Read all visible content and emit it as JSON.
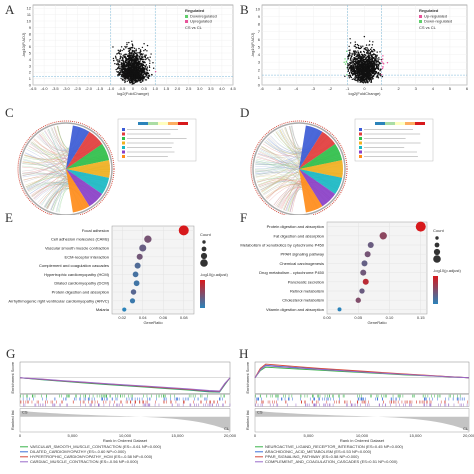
{
  "panels": {
    "A": {
      "label": "A",
      "legend_title": "Regulated",
      "legend": [
        "Downregulated",
        "Upregulated"
      ],
      "corner": "CS vs CL",
      "xlabel": "log2(FoldChange)",
      "ylabel": "-log10(P.ADJ)",
      "xticks": [
        "-4.5",
        "-4.0",
        "-3.5",
        "-3.0",
        "-2.5",
        "-2.0",
        "-1.5",
        "-1.0",
        "-0.5",
        "0",
        "0.5",
        "1.0",
        "1.5",
        "2.0",
        "2.5",
        "3.0",
        "3.5",
        "4.0",
        "4.5"
      ],
      "yticks": [
        "0",
        "1",
        "2",
        "3",
        "4",
        "5",
        "6",
        "7",
        "8",
        "9",
        "10",
        "11",
        "12"
      ]
    },
    "B": {
      "label": "B",
      "legend_title": "Regulated",
      "legend": [
        "Up-regulated",
        "Down-regulated"
      ],
      "corner": "CS vs CL",
      "xlabel": "log2(FoldChange)",
      "ylabel": "-log10(P.ADJ)",
      "xticks": [
        "-6",
        "-5",
        "-4",
        "-3",
        "-2",
        "-1",
        "0",
        "1",
        "2",
        "3",
        "4",
        "5",
        "6"
      ],
      "yticks": [
        "0",
        "1",
        "2",
        "3",
        "4",
        "5",
        "6",
        "7",
        "8",
        "9",
        "10"
      ]
    },
    "C": {
      "label": "C"
    },
    "D": {
      "label": "D"
    },
    "E": {
      "label": "E",
      "xlabel": "GeneRatio",
      "count_title": "Count",
      "padj_title": "-log10(p.adjust)",
      "xticks": [
        "0.02",
        "0.04",
        "0.06",
        "0.08"
      ],
      "terms": [
        "Focal adhesion",
        "Cell adhesion molecules (CAMs)",
        "Vascular smooth muscle contraction",
        "ECM-receptor interaction",
        "Complement and coagulation cascades",
        "Hypertrophic cardiomyopathy (HCM)",
        "Dilated cardiomyopathy (DCM)",
        "Protein digestion and absorption",
        "Arrhythmogenic right ventricular cardiomyopathy (ARVC)",
        "Malaria"
      ]
    },
    "F": {
      "label": "F",
      "xlabel": "GeneRatio",
      "count_title": "Count",
      "padj_title": "-log10(p.adjust)",
      "xticks": [
        "0.00",
        "0.05",
        "0.10",
        "0.15"
      ],
      "terms": [
        "Protein digestion and absorption",
        "Fat digestion and absorption",
        "Metabolism of xenobiotics by cytochrome P450",
        "PPAR signaling pathway",
        "Chemical carcinogenesis",
        "Drug metabolism - cytochrome P450",
        "Pancreatic secretion",
        "Retinol metabolism",
        "Cholesterol metabolism",
        "Vitamin digestion and absorption"
      ]
    },
    "G": {
      "label": "G",
      "ylabel": "Enrichment Score",
      "rank_label": "Rank in Ordered Dataset",
      "corner_left": "CS",
      "corner_right": "CL",
      "legend": [
        "VASCULAR_SMOOTH_MUSCLE_CONTRACTION (ES=-0.61 NP=0.000)",
        "DILATED_CARDIOMYOPATHY (ES=-0.60 NP=0.000)",
        "HYPERTROPHIC_CARDIOMYOPATHY_HCM (ES=-0.58 NP=0.000)",
        "CARDIAC_MUSCLE_CONTRACTION (ES=-0.56 NP=0.000)"
      ],
      "xticks": [
        "0",
        "5,000",
        "10,000",
        "15,000",
        "20,000"
      ]
    },
    "H": {
      "label": "H",
      "ylabel": "Enrichment Score",
      "rank_label": "Rank in Ordered Dataset",
      "corner_left": "CS",
      "corner_right": "CL",
      "legend": [
        "NEUROACTIVE_LIGAND_RECEPTOR_INTERACTION (ES=0.45 NP=0.000)",
        "ARACHIDONIC_ACID_METABOLISM (ES=0.53 NP=0.000)",
        "PPAR_SIGNALING_PATHWAY (ES=0.58 NP=0.000)",
        "COMPLEMENT_AND_COAGULATION_CASCADES (ES=0.51 NP=0.000)"
      ],
      "xticks": [
        "0",
        "5,000",
        "10,000",
        "15,000",
        "20,000"
      ]
    }
  },
  "colors": {
    "up": "#e8549a",
    "down": "#5fcf6b",
    "ns": "#111111",
    "grad_high": "#d7191c",
    "grad_low": "#2b83ba"
  },
  "chart_data": [
    {
      "type": "scatter",
      "panel": "A",
      "xlabel": "log2(FoldChange)",
      "ylabel": "-log10(P.ADJ)",
      "xlim": [
        -4.5,
        4.5
      ],
      "ylim": [
        0,
        12.5
      ],
      "series": [
        {
          "name": "Downregulated",
          "color": "#5fcf6b"
        },
        {
          "name": "Upregulated",
          "color": "#e8549a"
        }
      ]
    },
    {
      "type": "scatter",
      "panel": "B",
      "xlabel": "log2(FoldChange)",
      "ylabel": "-log10(P.ADJ)",
      "xlim": [
        -6,
        6
      ],
      "ylim": [
        0,
        10.5
      ],
      "series": [
        {
          "name": "Up-regulated",
          "color": "#e8549a"
        },
        {
          "name": "Down-regulated",
          "color": "#5fcf6b"
        }
      ]
    },
    {
      "type": "scatter",
      "panel": "E",
      "xlabel": "GeneRatio",
      "xlim": [
        0.01,
        0.09
      ],
      "categories": [
        "Focal adhesion",
        "Cell adhesion molecules (CAMs)",
        "Vascular smooth muscle contraction",
        "ECM-receptor interaction",
        "Complement and coagulation cascades",
        "Hypertrophic cardiomyopathy (HCM)",
        "Dilated cardiomyopathy (DCM)",
        "Protein digestion and absorption",
        "Arrhythmogenic right ventricular cardiomyopathy (ARVC)",
        "Malaria"
      ],
      "x": [
        0.08,
        0.045,
        0.04,
        0.037,
        0.035,
        0.033,
        0.034,
        0.031,
        0.03,
        0.022
      ],
      "size": [
        60,
        40,
        38,
        30,
        30,
        28,
        28,
        26,
        24,
        16
      ],
      "padj": [
        9.5,
        5.2,
        4.5,
        5.0,
        3.5,
        3.0,
        2.8,
        3.8,
        2.5,
        1.8
      ]
    },
    {
      "type": "scatter",
      "panel": "F",
      "xlabel": "GeneRatio",
      "xlim": [
        0.0,
        0.16
      ],
      "categories": [
        "Protein digestion and absorption",
        "Fat digestion and absorption",
        "Metabolism of xenobiotics by cytochrome P450",
        "PPAR signaling pathway",
        "Chemical carcinogenesis",
        "Drug metabolism - cytochrome P450",
        "Pancreatic secretion",
        "Retinol metabolism",
        "Cholesterol metabolism",
        "Vitamin digestion and absorption"
      ],
      "x": [
        0.15,
        0.09,
        0.07,
        0.065,
        0.06,
        0.058,
        0.062,
        0.056,
        0.05,
        0.02
      ],
      "size": [
        12,
        8,
        6,
        6,
        6,
        6,
        6,
        5,
        5,
        3
      ],
      "padj": [
        4.5,
        3.2,
        2.6,
        2.8,
        2.5,
        2.7,
        4.0,
        2.6,
        3.0,
        1.5
      ]
    },
    {
      "type": "line",
      "panel": "G",
      "x": [
        0,
        2000,
        4000,
        6000,
        8000,
        10000,
        12000,
        14000,
        16000,
        18000,
        19000,
        19500,
        20000
      ],
      "series": [
        {
          "name": "VASCULAR_SMOOTH_MUSCLE_CONTRACTION",
          "color": "#38b34a",
          "values": [
            0,
            -0.08,
            -0.15,
            -0.22,
            -0.28,
            -0.34,
            -0.4,
            -0.46,
            -0.52,
            -0.6,
            -0.61,
            -0.3,
            0
          ]
        },
        {
          "name": "DILATED_CARDIOMYOPATHY",
          "color": "#3a6fd8",
          "values": [
            0,
            -0.07,
            -0.14,
            -0.2,
            -0.26,
            -0.32,
            -0.38,
            -0.44,
            -0.5,
            -0.58,
            -0.6,
            -0.28,
            0
          ]
        },
        {
          "name": "HYPERTROPHIC_CARDIOMYOPATHY_HCM",
          "color": "#d6493b",
          "values": [
            0,
            -0.06,
            -0.13,
            -0.19,
            -0.25,
            -0.31,
            -0.37,
            -0.43,
            -0.49,
            -0.56,
            -0.58,
            -0.26,
            0
          ]
        },
        {
          "name": "CARDIAC_MUSCLE_CONTRACTION",
          "color": "#9a6ac9",
          "values": [
            0,
            -0.05,
            -0.12,
            -0.18,
            -0.24,
            -0.3,
            -0.35,
            -0.41,
            -0.47,
            -0.54,
            -0.56,
            -0.24,
            0
          ]
        }
      ]
    },
    {
      "type": "line",
      "panel": "H",
      "x": [
        0,
        500,
        1000,
        2000,
        4000,
        6000,
        8000,
        10000,
        12000,
        14000,
        16000,
        18000,
        20000
      ],
      "series": [
        {
          "name": "NEUROACTIVE_LIGAND_RECEPTOR_INTERACTION",
          "color": "#38b34a",
          "values": [
            0,
            0.3,
            0.45,
            0.42,
            0.37,
            0.32,
            0.27,
            0.22,
            0.17,
            0.12,
            0.08,
            0.04,
            0
          ]
        },
        {
          "name": "ARACHIDONIC_ACID_METABOLISM",
          "color": "#3a6fd8",
          "values": [
            0,
            0.35,
            0.53,
            0.49,
            0.43,
            0.37,
            0.31,
            0.26,
            0.2,
            0.15,
            0.1,
            0.05,
            0
          ]
        },
        {
          "name": "PPAR_SIGNALING_PATHWAY",
          "color": "#d6493b",
          "values": [
            0,
            0.4,
            0.58,
            0.54,
            0.47,
            0.4,
            0.34,
            0.28,
            0.22,
            0.16,
            0.11,
            0.05,
            0
          ]
        },
        {
          "name": "COMPLEMENT_AND_COAGULATION_CASCADES",
          "color": "#9a6ac9",
          "values": [
            0,
            0.33,
            0.51,
            0.47,
            0.41,
            0.35,
            0.3,
            0.24,
            0.19,
            0.14,
            0.09,
            0.04,
            0
          ]
        }
      ]
    }
  ]
}
